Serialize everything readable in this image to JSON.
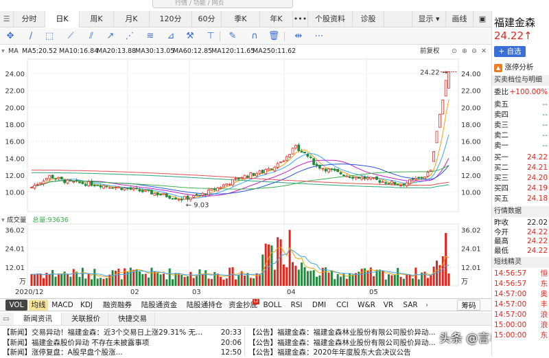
{
  "search": {
    "placeholder": "行情 / 功能 / 网页"
  },
  "tabs": {
    "period": [
      "分时",
      "日K",
      "周K",
      "月K",
      "120分",
      "60分",
      "季K",
      "年K"
    ],
    "more": "•••",
    "extra": [
      "个股资料",
      "诊股"
    ],
    "display": "显示 ▾",
    "draw": "画线"
  },
  "ma_line": {
    "label": "MA",
    "items": [
      {
        "text": "MA5:20.52",
        "color": "#f0a30a"
      },
      {
        "text": "MA10:16.84",
        "color": "#3aa6f0"
      },
      {
        "text": "MA20:13.88",
        "color": "#c11ec6"
      },
      {
        "text": "MA30:13.05",
        "color": "#2a55e0"
      },
      {
        "text": "MA60:12.85",
        "color": "#3cb04a"
      },
      {
        "text": "MA120:11.65",
        "color": "#2aa67a"
      },
      {
        "text": "MA250:11.62",
        "color": "#e35050"
      }
    ],
    "adjust": "前复权"
  },
  "price_axis": {
    "ticks": [
      "24.00",
      "22.00",
      "20.00",
      "18.00",
      "16.00",
      "14.00",
      "12.00",
      "10.00"
    ]
  },
  "vol_axis": {
    "ticks": [
      "36.02",
      "24.01",
      "12.01",
      "万"
    ]
  },
  "date_axis": {
    "ticks": [
      "2020/12",
      "02",
      "03",
      "04",
      "05"
    ]
  },
  "volume_header": {
    "label": "成交量",
    "total": "总量:93636"
  },
  "chart_data": {
    "type": "candlestick",
    "ylim": [
      9.0,
      24.9
    ],
    "last_price_label": "24.22",
    "low_label": "9.03",
    "volume_ylim": [
      0,
      38
    ]
  },
  "indicator_tabs": [
    "VOL",
    "均线",
    "MACD",
    "KDJ",
    "融资融券",
    "陆股通资金",
    "陆股通持仓",
    "资金抄底",
    "BOLL",
    "RSI",
    "DMI",
    "CCI",
    "W&R",
    "VR",
    "SAR"
  ],
  "indicator_badge": "L2",
  "chips_tab": "筹码",
  "news_tabs": [
    "新闻资讯",
    "关联报价",
    "快捷交易"
  ],
  "news_left": [
    {
      "tag": "【新闻】",
      "title": "交易异动！福建金森：近3个交易日上涨29.31% 无...",
      "time": "20:33"
    },
    {
      "tag": "【新闻】",
      "title": "福建金森股价异动 不存在未披露事项",
      "time": "20:06"
    },
    {
      "tag": "【新闻】",
      "title": "涨停复盘：A股早盘个股涨...",
      "time": "12:50"
    }
  ],
  "news_right": [
    {
      "tag": "【公告】",
      "title": "福建金森：福建金森林业股份有限公司股价异动..."
    },
    {
      "tag": "【公告】",
      "title": "福建金森：福建金森林业股份有限公司股价异动..."
    },
    {
      "tag": "【公告】",
      "title": "福建金森：2020年年度股东大会决议公告"
    }
  ],
  "watermark": "头条 @言与股权",
  "stock": {
    "name": "福建金森",
    "price": "24.22",
    "arrow": "↑",
    "add_btn": "+ 自选",
    "analysis": "涨停分析"
  },
  "order_book": {
    "title": "买卖档位与明细",
    "commit_label": "委比",
    "commit_value": "+100.00%",
    "asks": [
      {
        "label": "卖五",
        "price": "--"
      },
      {
        "label": "卖四",
        "price": "--"
      },
      {
        "label": "卖三",
        "price": "--"
      },
      {
        "label": "卖二",
        "price": "--"
      },
      {
        "label": "卖一",
        "price": "--"
      }
    ],
    "bids": [
      {
        "label": "买一",
        "price": "24.22"
      },
      {
        "label": "买二",
        "price": "24.21"
      },
      {
        "label": "买三",
        "price": "24.20"
      },
      {
        "label": "买四",
        "price": "24.19"
      },
      {
        "label": "买五",
        "price": "24.18"
      }
    ]
  },
  "quote": {
    "title": "行情数据",
    "rows": [
      {
        "label": "昨收",
        "value": "22.02"
      },
      {
        "label": "今开",
        "value": "24.22"
      },
      {
        "label": "最高",
        "value": "24.22"
      },
      {
        "label": "最低",
        "value": "24.22"
      }
    ]
  },
  "sprite": {
    "title": "短线精灵",
    "rows": [
      {
        "time": "14:56:57",
        "tag": "恒"
      },
      {
        "time": "14:56:57",
        "tag": "东"
      },
      {
        "time": "14:57:00",
        "tag": "奥"
      },
      {
        "time": "14:57:00",
        "tag": "丰"
      },
      {
        "time": "14:57:00",
        "tag": "浪"
      },
      {
        "time": "15:00:00",
        "tag": "浪"
      },
      {
        "time": "15:00:00",
        "tag": "东"
      }
    ]
  }
}
